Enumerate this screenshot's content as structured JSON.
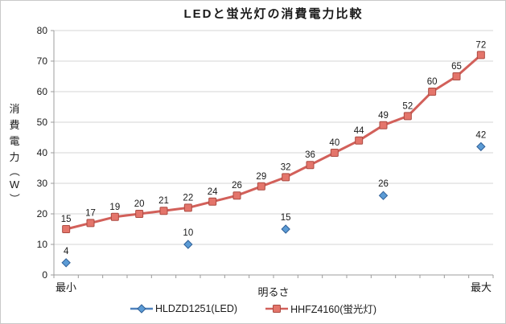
{
  "chart_data": {
    "type": "line",
    "title": "LEDと蛍光灯の消費電力比較",
    "x_axis_title": "明るさ",
    "y_axis_title": "消費電力（W）",
    "x_endpoint_labels": {
      "first": "最小",
      "last": "最大"
    },
    "num_categories": 18,
    "ylim": [
      0,
      80
    ],
    "y_ticks": [
      0,
      10,
      20,
      30,
      40,
      50,
      60,
      70,
      80
    ],
    "grid": true,
    "data_labels": true,
    "legend_position": "bottom",
    "series": [
      {
        "name": "HLDZD1251(LED)",
        "type": "scatter",
        "marker": "diamond",
        "show_line": false,
        "line_color": "#4f81bd",
        "marker_fill": "#5b9bd5",
        "marker_stroke": "#2f5f97",
        "values": [
          4,
          null,
          null,
          null,
          null,
          10,
          null,
          null,
          null,
          15,
          null,
          null,
          null,
          26,
          null,
          null,
          null,
          42
        ]
      },
      {
        "name": "HHFZ4160(蛍光灯)",
        "type": "line",
        "marker": "square",
        "show_line": true,
        "line_color": "#d2605a",
        "marker_fill": "#e4756b",
        "marker_stroke": "#ab4a41",
        "values": [
          15,
          17,
          19,
          20,
          21,
          22,
          24,
          26,
          29,
          32,
          36,
          40,
          44,
          49,
          52,
          60,
          65,
          72
        ]
      }
    ]
  },
  "colors": {
    "gridline": "#d6d6d6",
    "axis": "#9c9c9c",
    "text": "#1a1a1a"
  }
}
